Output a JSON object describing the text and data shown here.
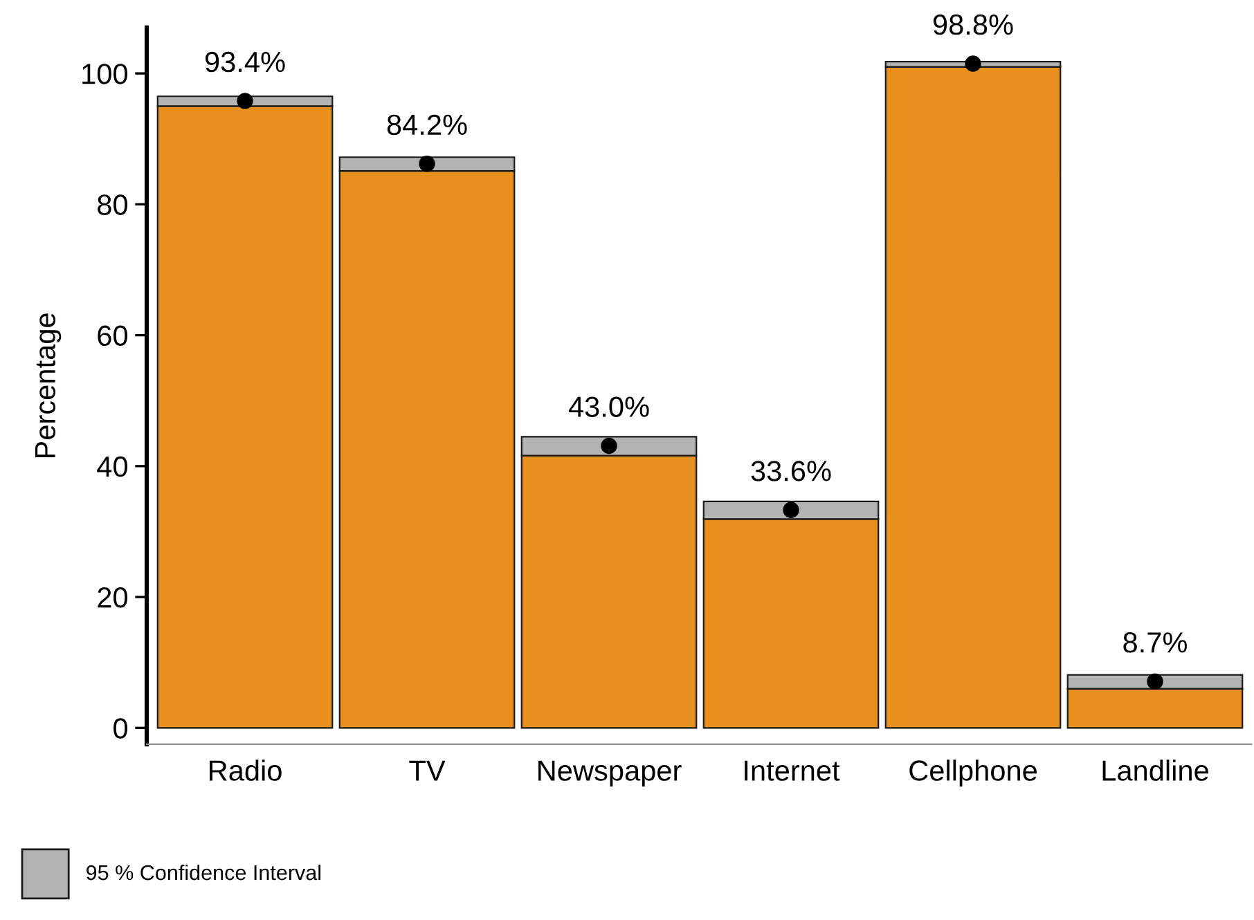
{
  "chart_data": {
    "type": "bar",
    "stacked": true,
    "ylabel": "Percentage",
    "categories": [
      "Radio",
      "TV",
      "Newspaper",
      "Internet",
      "Cellphone",
      "Landline"
    ],
    "series": [
      {
        "color": "#e8901d",
        "values": [
          95.0,
          85.1,
          41.6,
          31.9,
          101.0,
          6.0
        ]
      },
      {
        "name": "95 % Confidence Interval",
        "color": "#b3b3b3",
        "values": [
          1.5,
          2.1,
          2.9,
          2.7,
          0.8,
          2.1
        ]
      },
      {
        "type": "scatter",
        "color": "#000000",
        "values": [
          95.8,
          86.2,
          43.1,
          33.3,
          101.5,
          7.1
        ]
      }
    ],
    "annotations": [
      {
        "text": "93.4%",
        "x": "Radio",
        "y": 95.8
      },
      {
        "text": "84.2%",
        "x": "TV",
        "y": 86.2
      },
      {
        "text": "43.0%",
        "x": "Newspaper",
        "y": 43.1
      },
      {
        "text": "33.6%",
        "x": "Internet",
        "y": 33.3
      },
      {
        "text": "98.8%",
        "x": "Cellphone",
        "y": 101.5
      },
      {
        "text": "8.7%",
        "x": "Landline",
        "y": 7.1
      }
    ],
    "ylim": [
      -2.5,
      107
    ],
    "yticks": [
      0,
      20,
      40,
      60,
      80,
      100
    ],
    "grid": false,
    "legend": "bottom left",
    "marker": "circle"
  }
}
